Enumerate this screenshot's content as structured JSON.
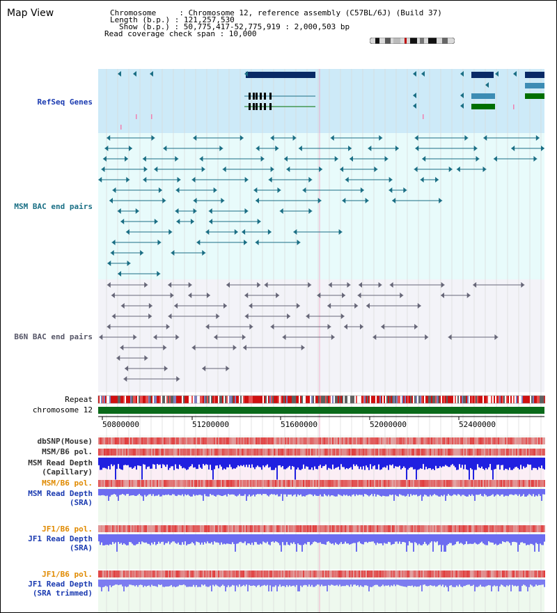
{
  "page_title": "Map View",
  "header": {
    "chromosome": "Chromosome     : Chromosome 12, reference assembly (C57BL/6J) (Build 37)",
    "length": "Length (b.p.) : 121,257,530",
    "show": "Show (b.p.) : 50,775,417-52,775,919 : 2,000,503 bp",
    "coverage": "Read coverage check span : 10,000"
  },
  "tracks": {
    "refseq": "RefSeq Genes",
    "msm_bac": "MSM BAC end pairs",
    "b6n_bac": "B6N BAC end pairs",
    "repeat": "Repeat",
    "chromosome": "chromosome 12",
    "dbsnp": "dbSNP(Mouse)",
    "msm_b6_pol_1": "MSM/B6 pol.",
    "msm_depth_cap_1": "MSM Read Depth",
    "msm_depth_cap_2": "(Capillary)",
    "msm_b6_pol_2": "MSM/B6 pol.",
    "msm_depth_sra_1": "MSM Read Depth",
    "msm_depth_sra_2": "(SRA)",
    "jf1_b6_pol_1": "JF1/B6 pol.",
    "jf1_depth_sra_1": "JF1 Read Depth",
    "jf1_depth_sra_2": "(SRA)",
    "jf1_b6_pol_2": "JF1/B6 pol.",
    "jf1_depth_trim_1": "JF1 Read Depth",
    "jf1_depth_trim_2": "(SRA trimmed)"
  },
  "axis": {
    "ticks": [
      "50800000",
      "51200000",
      "51600000",
      "52000000",
      "52400000"
    ]
  },
  "colors": {
    "refseq_bg": "#cdeaf8",
    "msm_bg": "#e8fbfb",
    "b6n_bg": "#f3f3f8",
    "navy": "#0a2a66",
    "teal": "#1a6e84",
    "green": "#006f00",
    "label_blue": "#1a3ab0",
    "label_teal": "#186e84",
    "label_grey": "#555566",
    "label_orange": "#e08a00",
    "depth_blue": "#2020e0",
    "depth_light": "#6c6cf0"
  }
}
